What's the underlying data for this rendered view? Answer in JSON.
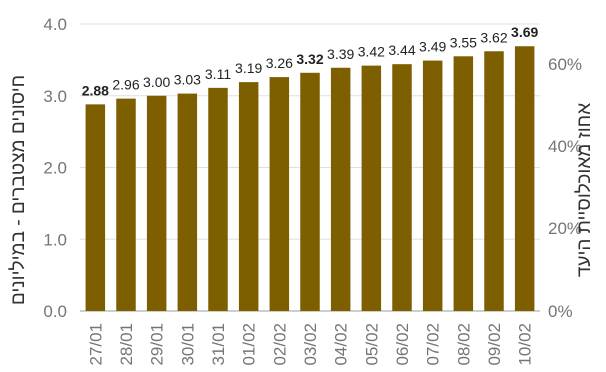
{
  "chart_data": {
    "type": "bar",
    "categories": [
      "27/01",
      "28/01",
      "29/01",
      "30/01",
      "31/01",
      "01/02",
      "02/02",
      "03/02",
      "04/02",
      "05/02",
      "06/02",
      "07/02",
      "08/02",
      "09/02",
      "10/02"
    ],
    "values": [
      2.88,
      2.96,
      3.0,
      3.03,
      3.11,
      3.19,
      3.26,
      3.32,
      3.39,
      3.42,
      3.44,
      3.49,
      3.55,
      3.62,
      3.69
    ],
    "value_labels": [
      "2.88",
      "2.96",
      "3.00",
      "3.03",
      "3.11",
      "3.19",
      "3.26",
      "3.32",
      "3.39",
      "3.42",
      "3.44",
      "3.49",
      "3.55",
      "3.62",
      "3.69"
    ],
    "bold_labels": [
      0,
      7,
      14
    ],
    "ylabel_left": "חיסונים מצטברים - במיליונים",
    "ylabel_right": "אחוז מאוכלוסיית היעד",
    "ylim": [
      0,
      4.0
    ],
    "yticks_left": [
      "0.0",
      "1.0",
      "2.0",
      "3.0",
      "4.0"
    ],
    "yticks_right": [
      "0%",
      "20%",
      "40%",
      "60%"
    ],
    "grid": true,
    "bar_color": "#7d5f00"
  }
}
